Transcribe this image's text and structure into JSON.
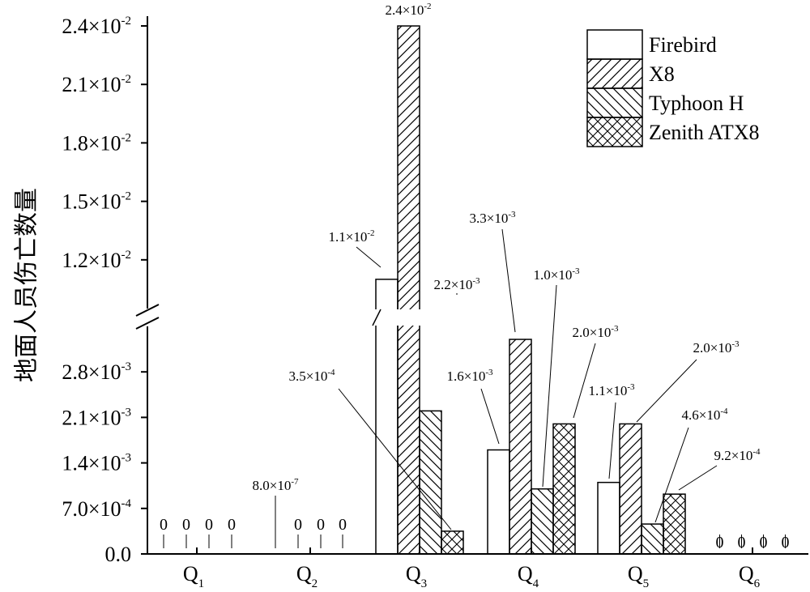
{
  "chart_data": {
    "type": "bar",
    "title": "",
    "xlabel": "",
    "ylabel": "地面人员伤亡数量",
    "categories": [
      {
        "main": "Q",
        "sub": "1"
      },
      {
        "main": "Q",
        "sub": "2"
      },
      {
        "main": "Q",
        "sub": "3"
      },
      {
        "main": "Q",
        "sub": "4"
      },
      {
        "main": "Q",
        "sub": "5"
      },
      {
        "main": "Q",
        "sub": "6"
      }
    ],
    "series": [
      {
        "name": "Firebird",
        "pattern": "none",
        "values": [
          0,
          8e-07,
          0.011,
          0.0016,
          0.0011,
          0
        ]
      },
      {
        "name": "X8",
        "pattern": "forward-hatch",
        "values": [
          0,
          0,
          0.024,
          0.0033,
          0.002,
          0
        ]
      },
      {
        "name": "Typhoon H",
        "pattern": "back-hatch",
        "values": [
          0,
          0,
          0.0022,
          0.001,
          0.00046,
          0
        ]
      },
      {
        "name": "Zenith ATX8",
        "pattern": "cross-hatch",
        "values": [
          0,
          0,
          0.00035,
          0.002,
          0.00092,
          0
        ]
      }
    ],
    "y_axis": {
      "broken": true,
      "lower_range": [
        0,
        0.0035
      ],
      "upper_range": [
        0.0095,
        0.0245
      ],
      "lower_ticks": [
        {
          "value": 0,
          "mantissa": "0.0",
          "exp": ""
        },
        {
          "value": 0.0007,
          "mantissa": "7.0×10",
          "exp": "-4"
        },
        {
          "value": 0.0014,
          "mantissa": "1.4×10",
          "exp": "-3"
        },
        {
          "value": 0.0021,
          "mantissa": "2.1×10",
          "exp": "-3"
        },
        {
          "value": 0.0028,
          "mantissa": "2.8×10",
          "exp": "-3"
        }
      ],
      "upper_ticks": [
        {
          "value": 0.012,
          "mantissa": "1.2×10",
          "exp": "-2"
        },
        {
          "value": 0.015,
          "mantissa": "1.5×10",
          "exp": "-2"
        },
        {
          "value": 0.018,
          "mantissa": "1.8×10",
          "exp": "-2"
        },
        {
          "value": 0.021,
          "mantissa": "2.1×10",
          "exp": "-2"
        },
        {
          "value": 0.024,
          "mantissa": "2.4×10",
          "exp": "-2"
        }
      ]
    },
    "annotations": [
      {
        "cat": 0,
        "series": 0,
        "text": "0",
        "exp": ""
      },
      {
        "cat": 0,
        "series": 1,
        "text": "0",
        "exp": ""
      },
      {
        "cat": 0,
        "series": 2,
        "text": "0",
        "exp": ""
      },
      {
        "cat": 0,
        "series": 3,
        "text": "0",
        "exp": ""
      },
      {
        "cat": 1,
        "series": 0,
        "text": "8.0×10",
        "exp": "-7"
      },
      {
        "cat": 1,
        "series": 1,
        "text": "0",
        "exp": ""
      },
      {
        "cat": 1,
        "series": 2,
        "text": "0",
        "exp": ""
      },
      {
        "cat": 1,
        "series": 3,
        "text": "0",
        "exp": ""
      },
      {
        "cat": 2,
        "series": 0,
        "text": "1.1×10",
        "exp": "-2"
      },
      {
        "cat": 2,
        "series": 1,
        "text": "2.4×10",
        "exp": "-2"
      },
      {
        "cat": 2,
        "series": 2,
        "text": "2.2×10",
        "exp": "-3"
      },
      {
        "cat": 2,
        "series": 3,
        "text": "3.5×10",
        "exp": "-4"
      },
      {
        "cat": 3,
        "series": 0,
        "text": "1.6×10",
        "exp": "-3"
      },
      {
        "cat": 3,
        "series": 1,
        "text": "3.3×10",
        "exp": "-3"
      },
      {
        "cat": 3,
        "series": 2,
        "text": "1.0×10",
        "exp": "-3"
      },
      {
        "cat": 3,
        "series": 3,
        "text": "2.0×10",
        "exp": "-3"
      },
      {
        "cat": 4,
        "series": 0,
        "text": "1.1×10",
        "exp": "-3"
      },
      {
        "cat": 4,
        "series": 1,
        "text": "2.0×10",
        "exp": "-3"
      },
      {
        "cat": 4,
        "series": 2,
        "text": "4.6×10",
        "exp": "-4"
      },
      {
        "cat": 4,
        "series": 3,
        "text": "9.2×10",
        "exp": "-4"
      },
      {
        "cat": 5,
        "series": 0,
        "text": "0",
        "exp": ""
      },
      {
        "cat": 5,
        "series": 1,
        "text": "0",
        "exp": ""
      },
      {
        "cat": 5,
        "series": 2,
        "text": "0",
        "exp": ""
      },
      {
        "cat": 5,
        "series": 3,
        "text": "0",
        "exp": ""
      }
    ],
    "legend": {
      "position": "top-right"
    },
    "grid": false
  }
}
